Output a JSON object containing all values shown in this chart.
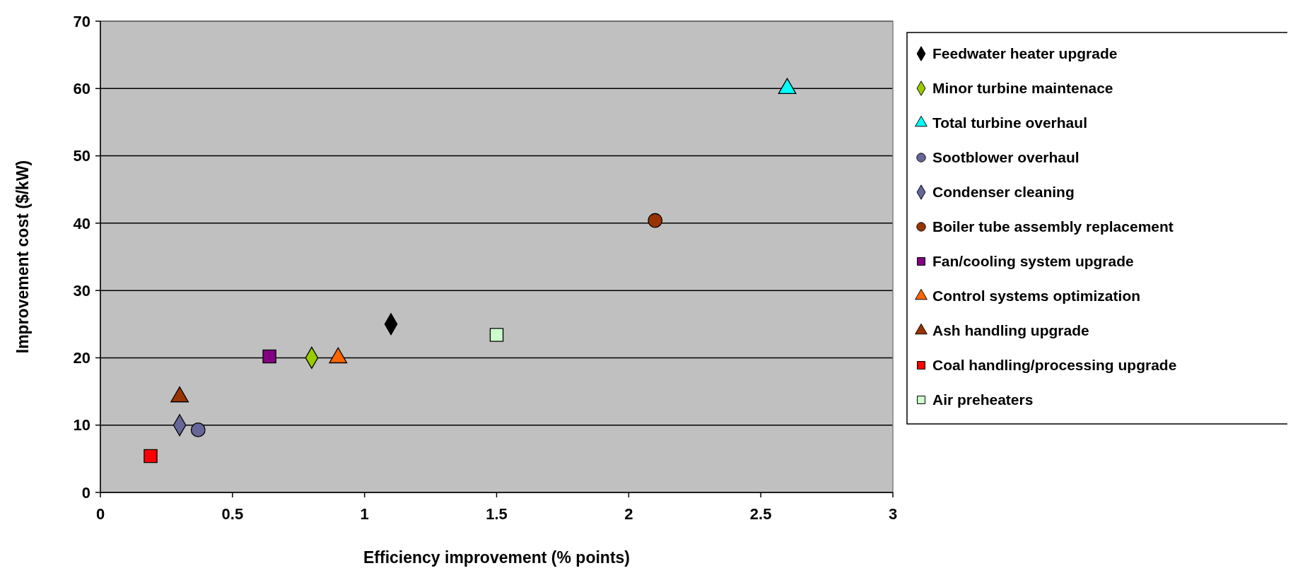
{
  "chart_data": {
    "type": "scatter",
    "xlabel": "Efficiency improvement (% points)",
    "ylabel": "Improvement cost ($/kW)",
    "xlim": [
      0,
      3
    ],
    "xticks": [
      0,
      0.5,
      1,
      1.5,
      2,
      2.5,
      3
    ],
    "ylim": [
      0,
      70
    ],
    "yticks": [
      0,
      10,
      20,
      30,
      40,
      50,
      60,
      70
    ],
    "grid": "y",
    "legend": "right",
    "series": [
      {
        "name": "Feedwater heater upgrade",
        "color": "#000000",
        "marker": "diamond",
        "x": [
          1.1
        ],
        "values": [
          25
        ]
      },
      {
        "name": "Minor turbine maintenace",
        "color": "#99cc00",
        "marker": "diamond",
        "x": [
          0.8
        ],
        "values": [
          20
        ]
      },
      {
        "name": "Total turbine overhaul",
        "color": "#00ffff",
        "marker": "triangle",
        "x": [
          2.6
        ],
        "values": [
          60
        ]
      },
      {
        "name": "Sootblower overhaul",
        "color": "#666699",
        "marker": "circle",
        "x": [
          0.37
        ],
        "values": [
          9.3
        ]
      },
      {
        "name": "Condenser cleaning",
        "color": "#666699",
        "marker": "diamond",
        "x": [
          0.3
        ],
        "values": [
          10
        ]
      },
      {
        "name": "Boiler tube assembly replacement",
        "color": "#993300",
        "marker": "circle",
        "x": [
          2.1
        ],
        "values": [
          40.4
        ]
      },
      {
        "name": "Fan/cooling system upgrade",
        "color": "#800080",
        "marker": "square",
        "x": [
          0.64
        ],
        "values": [
          20.2
        ]
      },
      {
        "name": "Control systems optimization",
        "color": "#ff6600",
        "marker": "triangle",
        "x": [
          0.9
        ],
        "values": [
          20
        ]
      },
      {
        "name": "Ash handling upgrade",
        "color": "#993300",
        "marker": "triangle",
        "x": [
          0.3
        ],
        "values": [
          14.2
        ]
      },
      {
        "name": "Coal handling/processing upgrade",
        "color": "#ff0000",
        "marker": "square",
        "x": [
          0.19
        ],
        "values": [
          5.4
        ]
      },
      {
        "name": "Air preheaters",
        "color": "#ccffcc",
        "marker": "square",
        "x": [
          1.5
        ],
        "values": [
          23.4
        ]
      }
    ]
  }
}
